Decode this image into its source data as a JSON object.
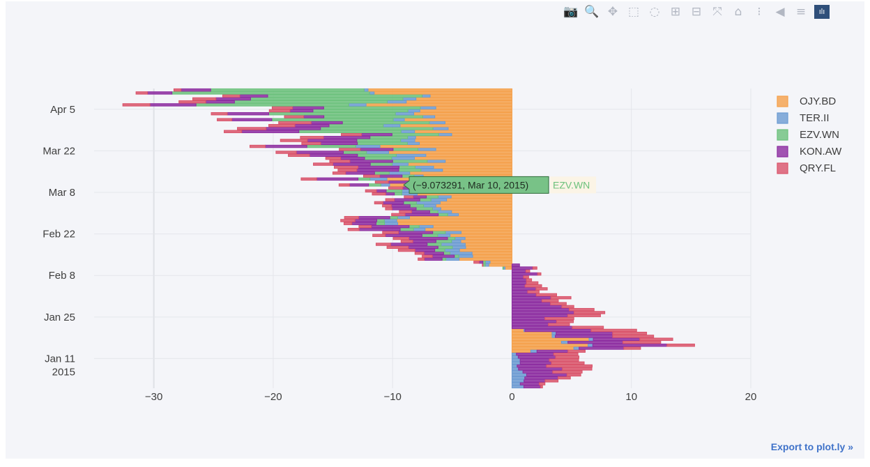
{
  "toolbar": {
    "buttons": [
      {
        "name": "camera-icon",
        "glyph": "📷"
      },
      {
        "name": "zoom-icon",
        "glyph": "🔍",
        "active": true
      },
      {
        "name": "pan-icon",
        "glyph": "✥"
      },
      {
        "name": "box-select-icon",
        "glyph": "⬚"
      },
      {
        "name": "lasso-select-icon",
        "glyph": "◌"
      },
      {
        "name": "zoom-in-icon",
        "glyph": "⊞"
      },
      {
        "name": "zoom-out-icon",
        "glyph": "⊟"
      },
      {
        "name": "autoscale-icon",
        "glyph": "⤧"
      },
      {
        "name": "reset-axes-icon",
        "glyph": "⌂"
      },
      {
        "name": "spike-lines-icon",
        "glyph": "⁝"
      },
      {
        "name": "hover-closest-icon",
        "glyph": "◀"
      },
      {
        "name": "hover-compare-icon",
        "glyph": "≡"
      }
    ],
    "logo_glyph": "ılı"
  },
  "export_link": "Export to plot.ly »",
  "chart_data": {
    "type": "bar",
    "orientation": "horizontal",
    "barmode": "relative",
    "x_range": [
      -35,
      20
    ],
    "x_ticks": [
      {
        "value": -30,
        "label": "−30"
      },
      {
        "value": -20,
        "label": "−20"
      },
      {
        "value": -10,
        "label": "−10"
      },
      {
        "value": 0,
        "label": "0"
      },
      {
        "value": 10,
        "label": "10"
      },
      {
        "value": 20,
        "label": "20"
      }
    ],
    "y_range": [
      "2015-01-01",
      "2015-04-12"
    ],
    "y_ticks": [
      {
        "date": "2015-01-11",
        "label": "Jan 11",
        "sub": "2015"
      },
      {
        "date": "2015-01-25",
        "label": "Jan 25"
      },
      {
        "date": "2015-02-08",
        "label": "Feb 8"
      },
      {
        "date": "2015-02-22",
        "label": "Feb 22"
      },
      {
        "date": "2015-03-08",
        "label": "Mar 8"
      },
      {
        "date": "2015-03-22",
        "label": "Mar 22"
      },
      {
        "date": "2015-04-05",
        "label": "Apr 5"
      }
    ],
    "grid": true,
    "legend_position": "top-right",
    "series": [
      {
        "name": "OJY.BD",
        "color": "#f5a04a"
      },
      {
        "name": "TER.II",
        "color": "#6c9bd2"
      },
      {
        "name": "EZV.WN",
        "color": "#6cc17c"
      },
      {
        "name": "KON.AW",
        "color": "#8c2ca0"
      },
      {
        "name": "QRY.FL",
        "color": "#d9536a"
      }
    ],
    "hover": {
      "text": "(−9.073291, Mar 10, 2015)",
      "series": "EZV.WN",
      "x": -9.073291,
      "date": "2015-03-10"
    },
    "waypoints": {
      "OJY.BD": [
        [
          0,
          0
        ],
        [
          3,
          0
        ],
        [
          5,
          0
        ],
        [
          8,
          0
        ],
        [
          10,
          0
        ],
        [
          12,
          0
        ],
        [
          13,
          4
        ],
        [
          15,
          5
        ],
        [
          17,
          6
        ],
        [
          20,
          0
        ],
        [
          22,
          0
        ],
        [
          26,
          0
        ],
        [
          28,
          0
        ],
        [
          30,
          0
        ],
        [
          33,
          0
        ],
        [
          35,
          0
        ],
        [
          36,
          0
        ],
        [
          38,
          0
        ],
        [
          40,
          0
        ],
        [
          44,
          -4
        ],
        [
          47,
          -4
        ],
        [
          50,
          -5
        ],
        [
          52,
          -6
        ],
        [
          56,
          -7
        ],
        [
          60,
          -7
        ],
        [
          62,
          -7
        ],
        [
          66,
          -8
        ],
        [
          70,
          -8
        ],
        [
          75,
          -8
        ],
        [
          80,
          -8
        ],
        [
          84,
          -8
        ],
        [
          88,
          -9
        ],
        [
          92,
          -8
        ],
        [
          96,
          -10
        ],
        [
          99,
          -10
        ]
      ],
      "TER.II": [
        [
          0,
          1
        ],
        [
          3,
          1
        ],
        [
          5,
          1
        ],
        [
          8,
          0.5
        ],
        [
          10,
          0.5
        ],
        [
          12,
          0.5
        ],
        [
          13,
          0.5
        ],
        [
          15,
          0.5
        ],
        [
          17,
          0.5
        ],
        [
          20,
          0
        ],
        [
          22,
          0
        ],
        [
          26,
          0
        ],
        [
          28,
          0
        ],
        [
          30,
          0
        ],
        [
          33,
          0
        ],
        [
          35,
          0
        ],
        [
          36,
          0
        ],
        [
          38,
          0
        ],
        [
          40,
          0
        ],
        [
          44,
          -1
        ],
        [
          47,
          -2
        ],
        [
          50,
          -1
        ],
        [
          52,
          -1
        ],
        [
          56,
          -1
        ],
        [
          60,
          -1
        ],
        [
          62,
          -1.5
        ],
        [
          66,
          -1.5
        ],
        [
          70,
          -1
        ],
        [
          75,
          -1.5
        ],
        [
          80,
          -2
        ],
        [
          84,
          -1
        ],
        [
          88,
          -1
        ],
        [
          92,
          -1.5
        ],
        [
          96,
          -1.5
        ],
        [
          99,
          -0.5
        ]
      ],
      "EZV.WN": [
        [
          0,
          0
        ],
        [
          3,
          0
        ],
        [
          5,
          0
        ],
        [
          8,
          0
        ],
        [
          10,
          0
        ],
        [
          12,
          0
        ],
        [
          13,
          0
        ],
        [
          15,
          0
        ],
        [
          17,
          0
        ],
        [
          20,
          0
        ],
        [
          22,
          0
        ],
        [
          26,
          0
        ],
        [
          28,
          0
        ],
        [
          30,
          0
        ],
        [
          33,
          0
        ],
        [
          35,
          0
        ],
        [
          36,
          0
        ],
        [
          38,
          0
        ],
        [
          40,
          0
        ],
        [
          44,
          -0.5
        ],
        [
          47,
          -1
        ],
        [
          50,
          -1
        ],
        [
          52,
          -1
        ],
        [
          56,
          -0.5
        ],
        [
          60,
          -1
        ],
        [
          62,
          -1
        ],
        [
          66,
          -1
        ],
        [
          70,
          -1
        ],
        [
          75,
          -2
        ],
        [
          80,
          -3
        ],
        [
          84,
          -5
        ],
        [
          88,
          -7
        ],
        [
          92,
          -10
        ],
        [
          96,
          -13
        ],
        [
          99,
          -14
        ]
      ],
      "KON.AW": [
        [
          0,
          1
        ],
        [
          3,
          3
        ],
        [
          5,
          3
        ],
        [
          8,
          4
        ],
        [
          10,
          3
        ],
        [
          12,
          2
        ],
        [
          13,
          4
        ],
        [
          15,
          5
        ],
        [
          17,
          5
        ],
        [
          20,
          6
        ],
        [
          22,
          3
        ],
        [
          26,
          4
        ],
        [
          28,
          4
        ],
        [
          30,
          3
        ],
        [
          33,
          2
        ],
        [
          35,
          1.5
        ],
        [
          36,
          1
        ],
        [
          38,
          1.5
        ],
        [
          40,
          2
        ],
        [
          44,
          -2
        ],
        [
          47,
          -2.5
        ],
        [
          50,
          -3
        ],
        [
          52,
          -3
        ],
        [
          56,
          -2
        ],
        [
          60,
          -2
        ],
        [
          62,
          -2
        ],
        [
          66,
          -1
        ],
        [
          70,
          -2.5
        ],
        [
          75,
          -3
        ],
        [
          80,
          -3
        ],
        [
          84,
          -4
        ],
        [
          88,
          -3.5
        ],
        [
          92,
          -2.5
        ],
        [
          96,
          -3
        ],
        [
          99,
          -3
        ]
      ],
      "QRY.FL": [
        [
          0,
          0
        ],
        [
          3,
          1
        ],
        [
          5,
          2
        ],
        [
          8,
          3
        ],
        [
          10,
          2.5
        ],
        [
          12,
          2
        ],
        [
          13,
          2
        ],
        [
          15,
          2.5
        ],
        [
          17,
          3
        ],
        [
          20,
          3
        ],
        [
          22,
          2
        ],
        [
          26,
          2
        ],
        [
          28,
          1.5
        ],
        [
          30,
          1.5
        ],
        [
          33,
          1
        ],
        [
          35,
          1
        ],
        [
          36,
          0.5
        ],
        [
          38,
          0.3
        ],
        [
          40,
          0.5
        ],
        [
          44,
          -1
        ],
        [
          47,
          -1.5
        ],
        [
          50,
          -1.5
        ],
        [
          52,
          -1
        ],
        [
          56,
          -1
        ],
        [
          60,
          -1
        ],
        [
          62,
          -0.5
        ],
        [
          66,
          -1
        ],
        [
          70,
          -1
        ],
        [
          75,
          -1.5
        ],
        [
          80,
          -2
        ],
        [
          84,
          -2
        ],
        [
          88,
          -2
        ],
        [
          92,
          -2
        ],
        [
          96,
          -2
        ],
        [
          99,
          -1
        ]
      ]
    }
  }
}
